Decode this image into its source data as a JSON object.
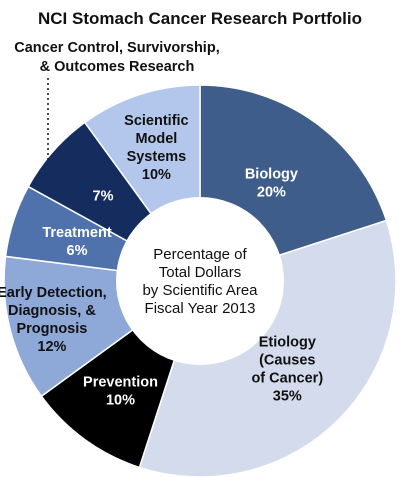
{
  "chart_data": {
    "type": "pie",
    "title": "NCI Stomach Cancer Research Portfolio",
    "center_text": [
      "Percentage of",
      "Total Dollars",
      "by Scientific Area",
      "Fiscal Year 2013"
    ],
    "slices": [
      {
        "lines": [
          "Biology",
          "20%"
        ],
        "value": 20,
        "color": "#3f5d8a",
        "text_color": "#ffffff"
      },
      {
        "lines": [
          "Etiology",
          "(Causes",
          "of Cancer)",
          "35%"
        ],
        "value": 35,
        "color": "#d3dbec",
        "text_color": "#111111"
      },
      {
        "lines": [
          "Prevention",
          "10%"
        ],
        "value": 10,
        "color": "#000000",
        "text_color": "#ffffff"
      },
      {
        "lines": [
          "Early Detection,",
          "Diagnosis, &",
          "Prognosis",
          "12%"
        ],
        "value": 12,
        "color": "#8ea8d8",
        "text_color": "#111111"
      },
      {
        "lines": [
          "Treatment",
          "6%"
        ],
        "value": 6,
        "color": "#4f72ad",
        "text_color": "#ffffff"
      },
      {
        "lines": [
          "7%"
        ],
        "value": 7,
        "color": "#142c5e",
        "text_color": "#ffffff"
      },
      {
        "lines": [
          "Scientific",
          "Model",
          "Systems",
          "10%"
        ],
        "value": 10,
        "color": "#b3c7ec",
        "text_color": "#111111"
      }
    ],
    "callout": {
      "lines": [
        "Cancer Control, Survivorship,",
        "& Outcomes Research"
      ],
      "slice_index": 5
    }
  }
}
